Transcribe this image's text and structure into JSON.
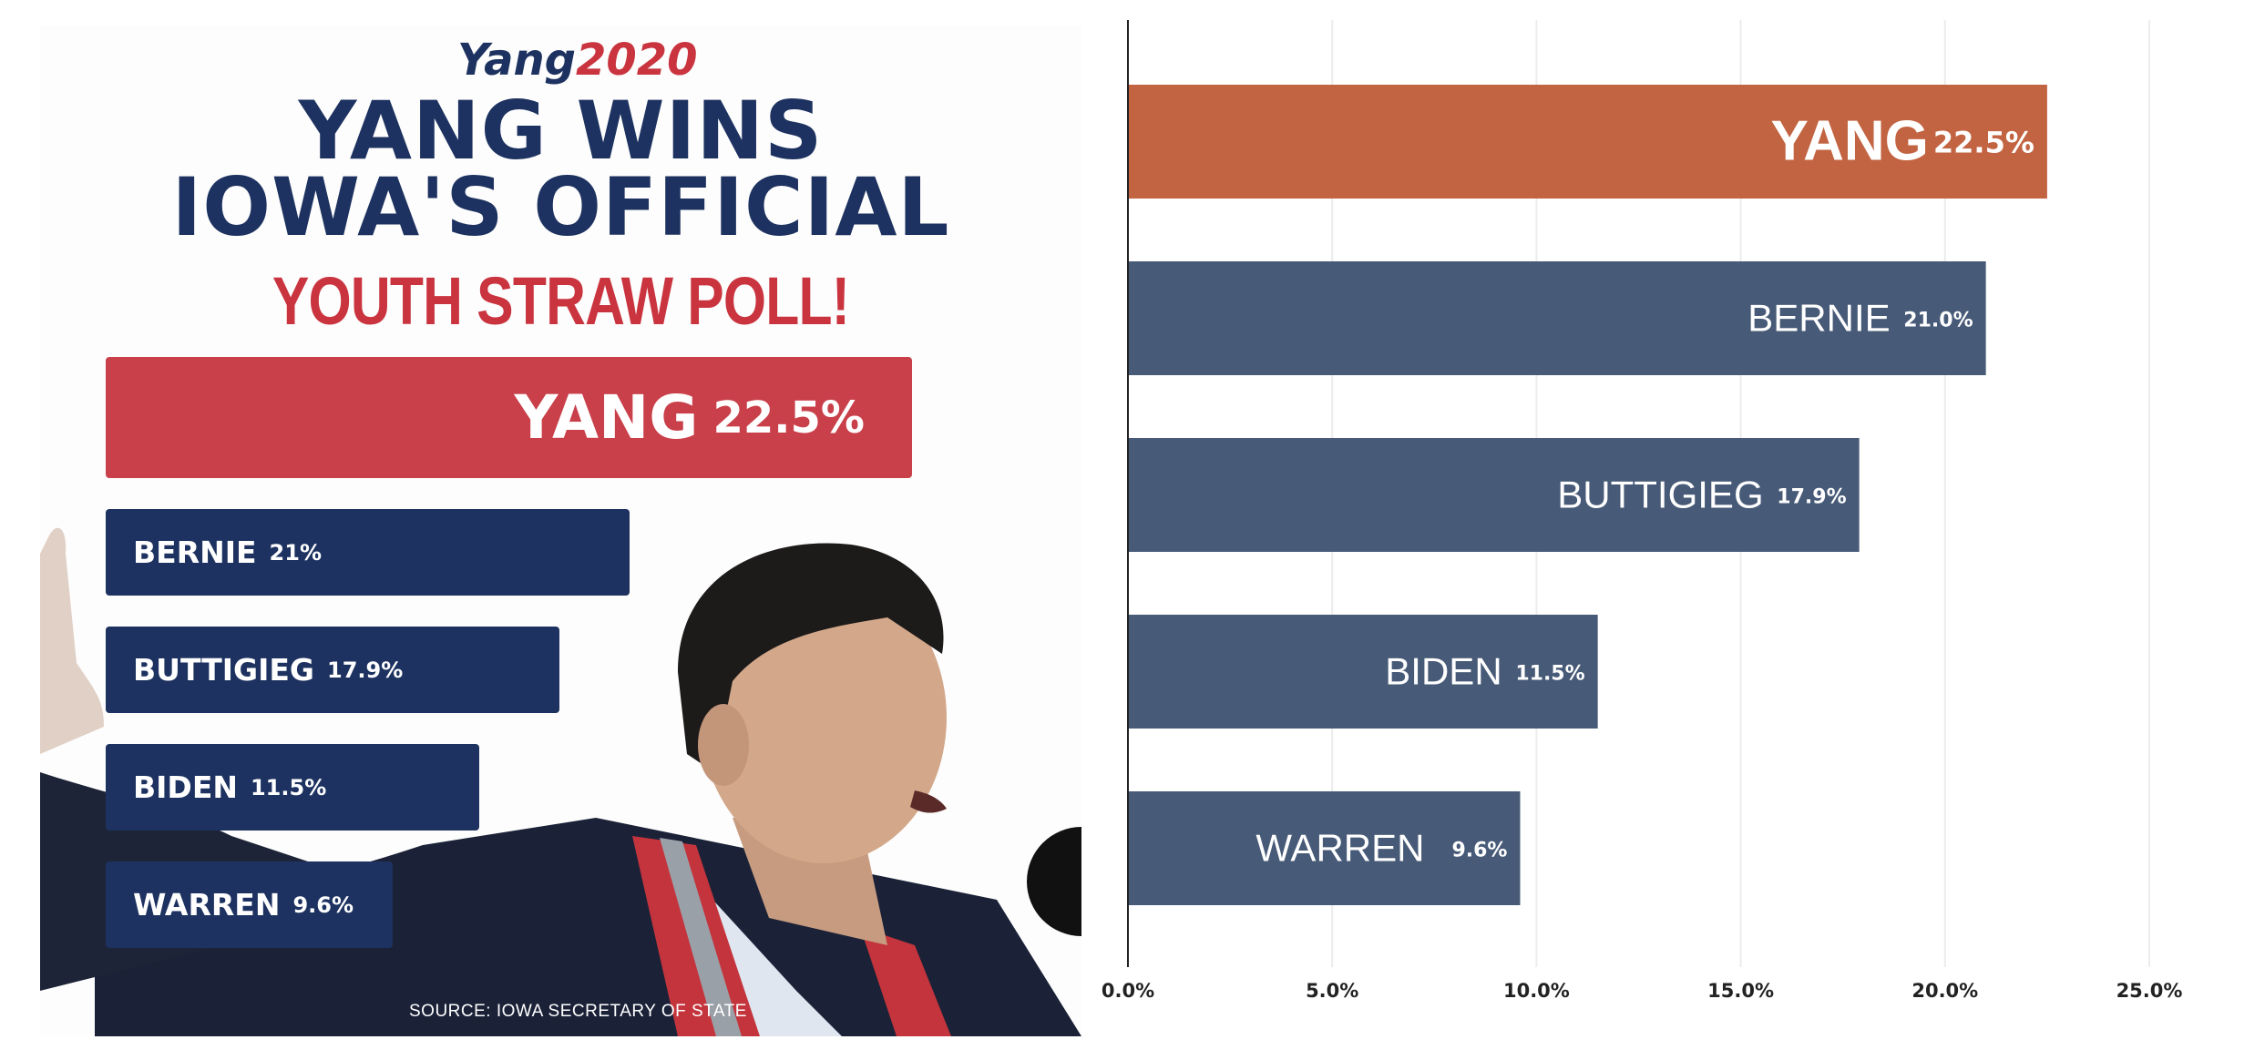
{
  "poster": {
    "logo_name": "Yang",
    "logo_year": "2020",
    "headline_line1": "YANG WINS",
    "headline_line2": "IOWA'S OFFICIAL",
    "headline_line3": "YOUTH STRAW POLL!",
    "source": "SOURCE: IOWA SECRETARY OF STATE",
    "bars": [
      {
        "name": "YANG",
        "value_label": "22.5%",
        "value": 22.5
      },
      {
        "name": "BERNIE",
        "value_label": "21%",
        "value": 21.0
      },
      {
        "name": "BUTTIGIEG",
        "value_label": "17.9%",
        "value": 17.9
      },
      {
        "name": "BIDEN",
        "value_label": "11.5%",
        "value": 11.5
      },
      {
        "name": "WARREN",
        "value_label": "9.6%",
        "value": 9.6
      }
    ],
    "colors": {
      "navy": "#1d3260",
      "red": "#c9404a"
    }
  },
  "chart_data": {
    "type": "bar",
    "orientation": "horizontal",
    "categories": [
      "YANG",
      "BERNIE",
      "BUTTIGIEG",
      "BIDEN",
      "WARREN"
    ],
    "values": [
      22.5,
      21.0,
      17.9,
      11.5,
      9.6
    ],
    "value_labels": [
      "22.5%",
      "21.0%",
      "17.9%",
      "11.5%",
      "9.6%"
    ],
    "xlim": [
      0,
      25
    ],
    "xticks": [
      0,
      5,
      10,
      15,
      20,
      25
    ],
    "xtick_labels": [
      "0.0%",
      "5.0%",
      "10.0%",
      "15.0%",
      "20.0%",
      "25.0%"
    ],
    "grid": true,
    "colors": {
      "highlight": "#c26441",
      "default": "#475a77"
    }
  }
}
